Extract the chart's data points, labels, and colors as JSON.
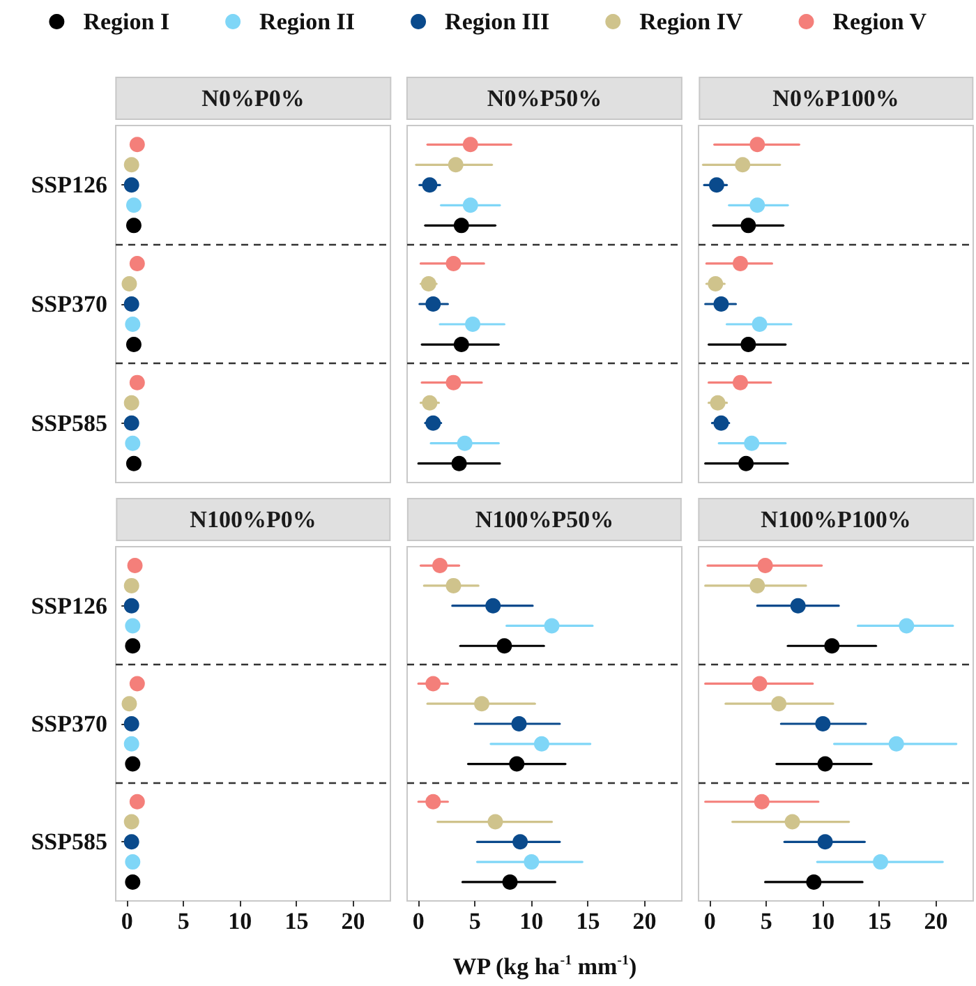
{
  "chart_data": [
    {
      "type": "scatter",
      "orientation": "horizontal",
      "title": "N0%P0%",
      "categories": [
        "SSP126",
        "SSP370",
        "SSP585"
      ],
      "xlim": [
        -1,
        23.3
      ],
      "xticks": [
        0,
        5,
        10,
        15,
        20
      ],
      "grid": "y",
      "marker": "circle",
      "legend": "top",
      "tick_labels": "y",
      "series": [
        {
          "name": "Region I",
          "color": "#000000",
          "values": [
            0.6,
            0.6,
            0.6
          ]
        },
        {
          "name": "Region II",
          "color": "#7fd6f7",
          "values": [
            0.6,
            0.5,
            0.5
          ]
        },
        {
          "name": "Region III",
          "color": "#0a4a8c",
          "values": [
            0.4,
            0.4,
            0.4
          ]
        },
        {
          "name": "Region IV",
          "color": "#cfc38c",
          "values": [
            0.4,
            0.2,
            0.4
          ]
        },
        {
          "name": "Region V",
          "color": "#f47f7a",
          "values": [
            0.9,
            0.9,
            0.9
          ]
        }
      ]
    },
    {
      "type": "scatter",
      "orientation": "horizontal",
      "title": "N0%P50%",
      "categories": [
        "SSP126",
        "SSP370",
        "SSP585"
      ],
      "xlim": [
        -1,
        23.3
      ],
      "xticks": [
        0,
        5,
        10,
        15,
        20
      ],
      "grid": "y",
      "marker": "circle",
      "tick_labels": false,
      "series": [
        {
          "name": "Region I",
          "color": "#000000",
          "values": [
            3.8,
            3.8,
            3.6
          ],
          "errors": [
            [
              0.6,
              6.8
            ],
            [
              0.3,
              7.1
            ],
            [
              0,
              7.2
            ]
          ]
        },
        {
          "name": "Region II",
          "color": "#7fd6f7",
          "values": [
            4.6,
            4.8,
            4.1
          ],
          "errors": [
            [
              2.0,
              7.2
            ],
            [
              1.9,
              7.6
            ],
            [
              1.1,
              7.1
            ]
          ]
        },
        {
          "name": "Region III",
          "color": "#0a4a8c",
          "values": [
            1.0,
            1.3,
            1.3
          ],
          "errors": [
            [
              0.1,
              1.9
            ],
            [
              0.1,
              2.6
            ],
            [
              0.6,
              2.0
            ]
          ]
        },
        {
          "name": "Region IV",
          "color": "#cfc38c",
          "values": [
            3.3,
            0.9,
            1.0
          ],
          "errors": [
            [
              -0.2,
              6.5
            ],
            [
              0.2,
              1.6
            ],
            [
              0.2,
              1.8
            ]
          ]
        },
        {
          "name": "Region V",
          "color": "#f47f7a",
          "values": [
            4.6,
            3.1,
            3.1
          ],
          "errors": [
            [
              0.8,
              8.2
            ],
            [
              0.2,
              5.8
            ],
            [
              0.3,
              5.6
            ]
          ]
        }
      ]
    },
    {
      "type": "scatter",
      "orientation": "horizontal",
      "title": "N0%P100%",
      "categories": [
        "SSP126",
        "SSP370",
        "SSP585"
      ],
      "xlim": [
        -1,
        23.3
      ],
      "xticks": [
        0,
        5,
        10,
        15,
        20
      ],
      "grid": "y",
      "marker": "circle",
      "tick_labels": false,
      "series": [
        {
          "name": "Region I",
          "color": "#000000",
          "values": [
            3.4,
            3.4,
            3.2
          ],
          "errors": [
            [
              0.3,
              6.5
            ],
            [
              -0.1,
              6.7
            ],
            [
              -0.4,
              6.9
            ]
          ]
        },
        {
          "name": "Region II",
          "color": "#7fd6f7",
          "values": [
            4.2,
            4.4,
            3.7
          ],
          "errors": [
            [
              1.7,
              6.9
            ],
            [
              1.5,
              7.2
            ],
            [
              0.8,
              6.7
            ]
          ]
        },
        {
          "name": "Region III",
          "color": "#0a4a8c",
          "values": [
            0.6,
            1.0,
            1.0
          ],
          "errors": [
            [
              -0.5,
              1.5
            ],
            [
              -0.4,
              2.3
            ],
            [
              0.2,
              1.7
            ]
          ]
        },
        {
          "name": "Region IV",
          "color": "#cfc38c",
          "values": [
            2.9,
            0.5,
            0.7
          ],
          "errors": [
            [
              -0.6,
              6.2
            ],
            [
              -0.3,
              1.3
            ],
            [
              -0.1,
              1.5
            ]
          ]
        },
        {
          "name": "Region V",
          "color": "#f47f7a",
          "values": [
            4.2,
            2.7,
            2.7
          ],
          "errors": [
            [
              0.4,
              7.9
            ],
            [
              -0.3,
              5.5
            ],
            [
              -0.1,
              5.4
            ]
          ]
        }
      ]
    },
    {
      "type": "scatter",
      "orientation": "horizontal",
      "title": "N100%P0%",
      "categories": [
        "SSP126",
        "SSP370",
        "SSP585"
      ],
      "xlim": [
        -1,
        23.3
      ],
      "xticks": [
        0,
        5,
        10,
        15,
        20
      ],
      "grid": "y",
      "marker": "circle",
      "series": [
        {
          "name": "Region I",
          "color": "#000000",
          "values": [
            0.5,
            0.5,
            0.5
          ]
        },
        {
          "name": "Region II",
          "color": "#7fd6f7",
          "values": [
            0.5,
            0.4,
            0.5
          ]
        },
        {
          "name": "Region III",
          "color": "#0a4a8c",
          "values": [
            0.4,
            0.4,
            0.4
          ]
        },
        {
          "name": "Region IV",
          "color": "#cfc38c",
          "values": [
            0.4,
            0.2,
            0.4
          ]
        },
        {
          "name": "Region V",
          "color": "#f47f7a",
          "values": [
            0.7,
            0.9,
            0.9
          ]
        }
      ]
    },
    {
      "type": "scatter",
      "orientation": "horizontal",
      "title": "N100%P50%",
      "xlabel": "WP (kg ha$^{-1}$ mm$^{-1}$)",
      "categories": [
        "SSP126",
        "SSP370",
        "SSP585"
      ],
      "xlim": [
        -1,
        23.3
      ],
      "xticks": [
        0,
        5,
        10,
        15,
        20
      ],
      "grid": "y",
      "marker": "circle",
      "tick_labels": "x",
      "series": [
        {
          "name": "Region I",
          "color": "#000000",
          "values": [
            7.6,
            8.7,
            8.1
          ],
          "errors": [
            [
              3.7,
              11.1
            ],
            [
              4.4,
              13.0
            ],
            [
              3.9,
              12.1
            ]
          ]
        },
        {
          "name": "Region II",
          "color": "#7fd6f7",
          "values": [
            11.8,
            10.9,
            10.0
          ],
          "errors": [
            [
              7.8,
              15.4
            ],
            [
              6.4,
              15.2
            ],
            [
              5.2,
              14.5
            ]
          ]
        },
        {
          "name": "Region III",
          "color": "#0a4a8c",
          "values": [
            6.6,
            8.9,
            9.0
          ],
          "errors": [
            [
              3.0,
              10.1
            ],
            [
              5.0,
              12.5
            ],
            [
              5.2,
              12.5
            ]
          ]
        },
        {
          "name": "Region IV",
          "color": "#cfc38c",
          "values": [
            3.1,
            5.6,
            6.8
          ],
          "errors": [
            [
              0.5,
              5.3
            ],
            [
              0.8,
              10.3
            ],
            [
              1.7,
              11.8
            ]
          ]
        },
        {
          "name": "Region V",
          "color": "#f47f7a",
          "values": [
            1.9,
            1.3,
            1.3
          ],
          "errors": [
            [
              0.2,
              3.6
            ],
            [
              0,
              2.6
            ],
            [
              0,
              2.6
            ]
          ]
        }
      ]
    },
    {
      "type": "scatter",
      "orientation": "horizontal",
      "title": "N100%P100%",
      "categories": [
        "SSP126",
        "SSP370",
        "SSP585"
      ],
      "xlim": [
        -1,
        23.3
      ],
      "xticks": [
        0,
        5,
        10,
        15,
        20
      ],
      "grid": "y",
      "marker": "circle",
      "tick_labels": "x",
      "series": [
        {
          "name": "Region I",
          "color": "#000000",
          "values": [
            10.8,
            10.2,
            9.2
          ],
          "errors": [
            [
              6.9,
              14.7
            ],
            [
              5.9,
              14.3
            ],
            [
              4.9,
              13.5
            ]
          ]
        },
        {
          "name": "Region II",
          "color": "#7fd6f7",
          "values": [
            17.4,
            16.5,
            15.1
          ],
          "errors": [
            [
              13.1,
              21.5
            ],
            [
              11.0,
              21.8
            ],
            [
              9.5,
              20.6
            ]
          ]
        },
        {
          "name": "Region III",
          "color": "#0a4a8c",
          "values": [
            7.8,
            10.0,
            10.2
          ],
          "errors": [
            [
              4.2,
              11.4
            ],
            [
              6.3,
              13.8
            ],
            [
              6.6,
              13.7
            ]
          ]
        },
        {
          "name": "Region IV",
          "color": "#cfc38c",
          "values": [
            4.2,
            6.1,
            7.3
          ],
          "errors": [
            [
              -0.4,
              8.5
            ],
            [
              1.4,
              10.9
            ],
            [
              2.0,
              12.3
            ]
          ]
        },
        {
          "name": "Region V",
          "color": "#f47f7a",
          "values": [
            4.9,
            4.4,
            4.6
          ],
          "errors": [
            [
              -0.2,
              9.9
            ],
            [
              -0.4,
              9.1
            ],
            [
              -0.4,
              9.6
            ]
          ]
        }
      ]
    }
  ]
}
